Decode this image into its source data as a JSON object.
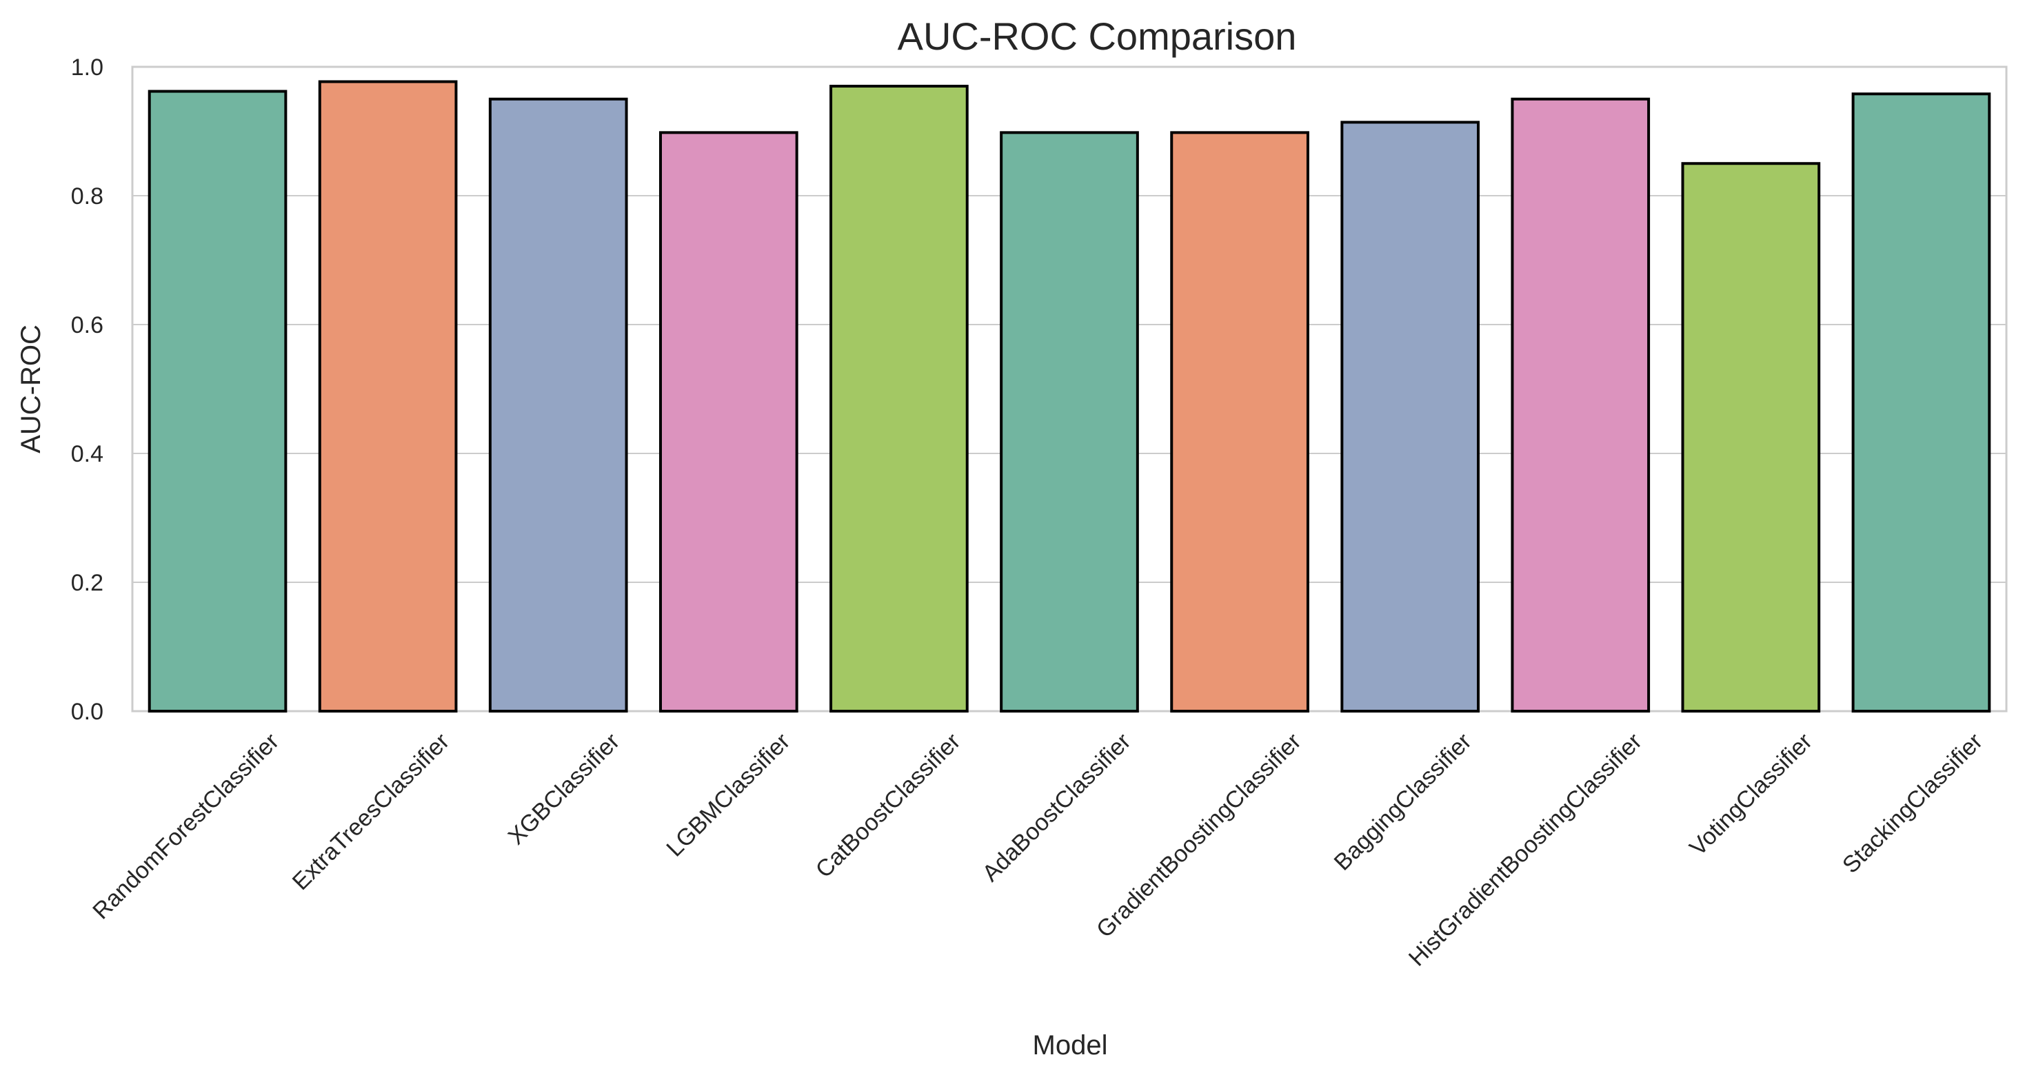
{
  "chart_data": {
    "type": "bar",
    "title": "AUC-ROC Comparison",
    "xlabel": "Model",
    "ylabel": "AUC-ROC",
    "ylim": [
      0,
      1.0
    ],
    "yticks": [
      0.0,
      0.2,
      0.4,
      0.6,
      0.8,
      1.0
    ],
    "ytick_labels": [
      "0.0",
      "0.2",
      "0.4",
      "0.6",
      "0.8",
      "1.0"
    ],
    "grid": "horizontal",
    "categories": [
      "RandomForestClassifier",
      "ExtraTreesClassifier",
      "XGBClassifier",
      "LGBMClassifier",
      "CatBoostClassifier",
      "AdaBoostClassifier",
      "GradientBoostingClassifier",
      "BaggingClassifier",
      "HistGradientBoostingClassifier",
      "VotingClassifier",
      "StackingClassifier"
    ],
    "values": [
      0.962,
      0.977,
      0.95,
      0.898,
      0.97,
      0.898,
      0.898,
      0.914,
      0.95,
      0.85,
      0.958
    ],
    "colors": [
      "#72b5a0",
      "#ea9674",
      "#94a5c4",
      "#dc93be",
      "#a3c864",
      "#72b5a0",
      "#ea9674",
      "#94a5c4",
      "#dc93be",
      "#a3c864",
      "#72b5a0"
    ]
  }
}
